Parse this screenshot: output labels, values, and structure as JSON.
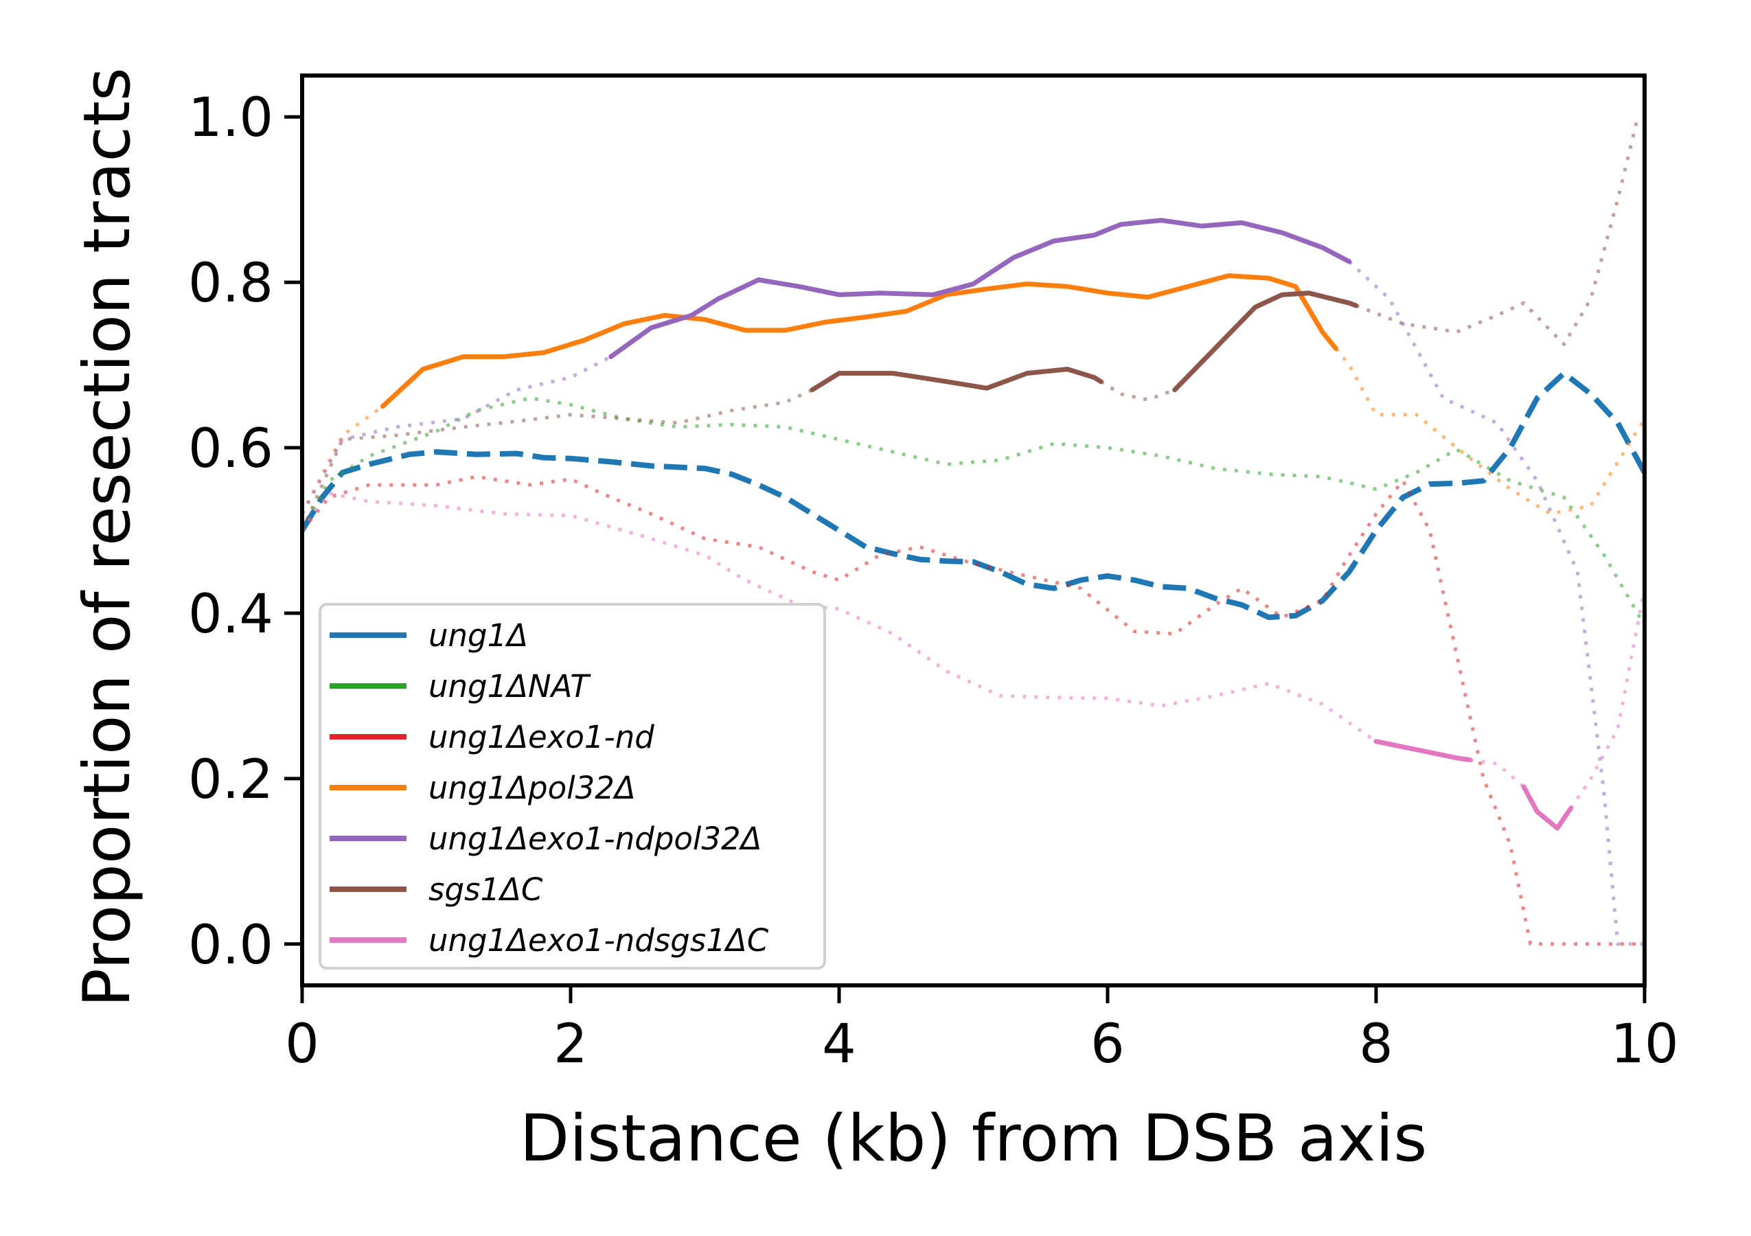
{
  "chart_data": {
    "type": "line",
    "title": "",
    "xlabel": "Distance (kb) from DSB axis",
    "ylabel": "Proportion of resection tracts",
    "xlim": [
      0,
      10
    ],
    "ylim": [
      -0.05,
      1.05
    ],
    "x_ticks": [
      "0",
      "2",
      "4",
      "6",
      "8",
      "10"
    ],
    "y_ticks": [
      "0.0",
      "0.2",
      "0.4",
      "0.6",
      "0.8",
      "1.0"
    ],
    "grid": false,
    "legend_position": "bottom-left",
    "series": [
      {
        "name": "ung1Δ",
        "color": "#1f77b4",
        "style": "dashed",
        "points": [
          [
            0,
            0.5
          ],
          [
            0.15,
            0.54
          ],
          [
            0.3,
            0.57
          ],
          [
            0.5,
            0.58
          ],
          [
            0.8,
            0.592
          ],
          [
            1.0,
            0.595
          ],
          [
            1.3,
            0.592
          ],
          [
            1.6,
            0.593
          ],
          [
            1.8,
            0.588
          ],
          [
            2.0,
            0.587
          ],
          [
            2.3,
            0.583
          ],
          [
            2.6,
            0.578
          ],
          [
            3.0,
            0.575
          ],
          [
            3.2,
            0.568
          ],
          [
            3.4,
            0.555
          ],
          [
            3.6,
            0.54
          ],
          [
            3.8,
            0.52
          ],
          [
            4.0,
            0.5
          ],
          [
            4.2,
            0.48
          ],
          [
            4.4,
            0.472
          ],
          [
            4.6,
            0.465
          ],
          [
            4.8,
            0.463
          ],
          [
            5.0,
            0.462
          ],
          [
            5.2,
            0.45
          ],
          [
            5.4,
            0.435
          ],
          [
            5.6,
            0.43
          ],
          [
            5.8,
            0.44
          ],
          [
            6.0,
            0.445
          ],
          [
            6.2,
            0.44
          ],
          [
            6.4,
            0.432
          ],
          [
            6.6,
            0.43
          ],
          [
            6.8,
            0.418
          ],
          [
            7.0,
            0.41
          ],
          [
            7.2,
            0.395
          ],
          [
            7.4,
            0.397
          ],
          [
            7.6,
            0.415
          ],
          [
            7.8,
            0.45
          ],
          [
            8.0,
            0.5
          ],
          [
            8.2,
            0.54
          ],
          [
            8.4,
            0.556
          ],
          [
            8.6,
            0.557
          ],
          [
            8.8,
            0.56
          ],
          [
            9.0,
            0.6
          ],
          [
            9.2,
            0.66
          ],
          [
            9.4,
            0.69
          ],
          [
            9.6,
            0.665
          ],
          [
            9.8,
            0.63
          ],
          [
            10.0,
            0.57
          ]
        ],
        "dotted_segments": []
      },
      {
        "name": "ung1ΔNAT",
        "color": "#2ca02c",
        "style": "solid",
        "points": [
          [
            0,
            0.5
          ],
          [
            0.2,
            0.56
          ],
          [
            0.5,
            0.59
          ],
          [
            1.0,
            0.62
          ],
          [
            1.3,
            0.645
          ],
          [
            1.7,
            0.66
          ],
          [
            2.0,
            0.652
          ],
          [
            2.4,
            0.635
          ],
          [
            2.8,
            0.625
          ],
          [
            3.2,
            0.628
          ],
          [
            3.6,
            0.625
          ],
          [
            4.0,
            0.61
          ],
          [
            4.4,
            0.595
          ],
          [
            4.8,
            0.58
          ],
          [
            5.2,
            0.585
          ],
          [
            5.6,
            0.605
          ],
          [
            6.0,
            0.6
          ],
          [
            6.4,
            0.59
          ],
          [
            6.8,
            0.575
          ],
          [
            7.2,
            0.568
          ],
          [
            7.6,
            0.565
          ],
          [
            8.0,
            0.55
          ],
          [
            8.3,
            0.57
          ],
          [
            8.6,
            0.598
          ],
          [
            9.0,
            0.56
          ],
          [
            9.4,
            0.54
          ],
          [
            9.7,
            0.47
          ],
          [
            10.0,
            0.385
          ]
        ],
        "dotted_segments": [
          [
            0,
            10
          ]
        ]
      },
      {
        "name": "ung1Δexo1-nd",
        "color": "#d62728",
        "style": "solid",
        "points": [
          [
            0,
            0.5
          ],
          [
            0.2,
            0.54
          ],
          [
            0.5,
            0.555
          ],
          [
            1.0,
            0.555
          ],
          [
            1.3,
            0.565
          ],
          [
            1.7,
            0.555
          ],
          [
            2.0,
            0.562
          ],
          [
            2.3,
            0.54
          ],
          [
            2.6,
            0.52
          ],
          [
            3.0,
            0.49
          ],
          [
            3.4,
            0.48
          ],
          [
            3.8,
            0.45
          ],
          [
            4.0,
            0.44
          ],
          [
            4.3,
            0.47
          ],
          [
            4.6,
            0.48
          ],
          [
            5.0,
            0.46
          ],
          [
            5.4,
            0.445
          ],
          [
            5.8,
            0.43
          ],
          [
            6.2,
            0.378
          ],
          [
            6.5,
            0.375
          ],
          [
            6.8,
            0.41
          ],
          [
            7.0,
            0.43
          ],
          [
            7.3,
            0.395
          ],
          [
            7.6,
            0.415
          ],
          [
            7.8,
            0.47
          ],
          [
            8.0,
            0.52
          ],
          [
            8.2,
            0.56
          ],
          [
            8.4,
            0.5
          ],
          [
            8.6,
            0.35
          ],
          [
            8.8,
            0.2
          ],
          [
            9.0,
            0.12
          ],
          [
            9.15,
            0.0
          ],
          [
            9.5,
            0.0
          ],
          [
            10.0,
            0.0
          ]
        ],
        "dotted_segments": [
          [
            0,
            10
          ]
        ]
      },
      {
        "name": "ung1Δpol32Δ",
        "color": "#ff7f0e",
        "style": "solid",
        "points": [
          [
            0,
            0.52
          ],
          [
            0.3,
            0.615
          ],
          [
            0.6,
            0.65
          ],
          [
            0.9,
            0.695
          ],
          [
            1.2,
            0.71
          ],
          [
            1.5,
            0.71
          ],
          [
            1.8,
            0.715
          ],
          [
            2.1,
            0.73
          ],
          [
            2.4,
            0.75
          ],
          [
            2.7,
            0.76
          ],
          [
            3.0,
            0.755
          ],
          [
            3.3,
            0.742
          ],
          [
            3.6,
            0.742
          ],
          [
            3.9,
            0.752
          ],
          [
            4.2,
            0.758
          ],
          [
            4.5,
            0.765
          ],
          [
            4.8,
            0.785
          ],
          [
            5.1,
            0.792
          ],
          [
            5.4,
            0.798
          ],
          [
            5.7,
            0.795
          ],
          [
            6.0,
            0.787
          ],
          [
            6.3,
            0.782
          ],
          [
            6.6,
            0.795
          ],
          [
            6.9,
            0.808
          ],
          [
            7.2,
            0.805
          ],
          [
            7.4,
            0.795
          ],
          [
            7.6,
            0.74
          ],
          [
            7.8,
            0.7
          ],
          [
            8.0,
            0.64
          ],
          [
            8.3,
            0.64
          ],
          [
            8.6,
            0.6
          ],
          [
            9.0,
            0.55
          ],
          [
            9.3,
            0.52
          ],
          [
            9.6,
            0.53
          ],
          [
            10.0,
            0.635
          ]
        ],
        "dotted_segments": [
          [
            0,
            0.6
          ],
          [
            7.7,
            10
          ]
        ]
      },
      {
        "name": "ung1Δexo1-ndpol32Δ",
        "color": "#9467bd",
        "style": "solid",
        "points": [
          [
            0,
            0.52
          ],
          [
            0.3,
            0.61
          ],
          [
            0.7,
            0.625
          ],
          [
            1.2,
            0.635
          ],
          [
            1.6,
            0.67
          ],
          [
            2.0,
            0.685
          ],
          [
            2.3,
            0.71
          ],
          [
            2.6,
            0.745
          ],
          [
            2.9,
            0.76
          ],
          [
            3.1,
            0.78
          ],
          [
            3.4,
            0.803
          ],
          [
            3.7,
            0.795
          ],
          [
            4.0,
            0.785
          ],
          [
            4.3,
            0.787
          ],
          [
            4.7,
            0.785
          ],
          [
            5.0,
            0.798
          ],
          [
            5.3,
            0.83
          ],
          [
            5.6,
            0.85
          ],
          [
            5.9,
            0.857
          ],
          [
            6.1,
            0.87
          ],
          [
            6.4,
            0.875
          ],
          [
            6.7,
            0.868
          ],
          [
            7.0,
            0.872
          ],
          [
            7.3,
            0.86
          ],
          [
            7.6,
            0.842
          ],
          [
            7.8,
            0.825
          ],
          [
            8.1,
            0.78
          ],
          [
            8.5,
            0.66
          ],
          [
            8.9,
            0.63
          ],
          [
            9.2,
            0.56
          ],
          [
            9.5,
            0.45
          ],
          [
            9.7,
            0.18
          ],
          [
            9.8,
            0.0
          ],
          [
            10.0,
            0.0
          ]
        ],
        "dotted_segments": [
          [
            0,
            2.3
          ],
          [
            7.8,
            10
          ]
        ]
      },
      {
        "name": "sgs1ΔC",
        "color": "#8c564b",
        "style": "solid",
        "points": [
          [
            0,
            0.5
          ],
          [
            0.3,
            0.61
          ],
          [
            0.7,
            0.615
          ],
          [
            1.2,
            0.625
          ],
          [
            1.6,
            0.632
          ],
          [
            2.0,
            0.64
          ],
          [
            2.4,
            0.635
          ],
          [
            2.8,
            0.63
          ],
          [
            3.2,
            0.645
          ],
          [
            3.6,
            0.655
          ],
          [
            3.8,
            0.67
          ],
          [
            4.0,
            0.69
          ],
          [
            4.4,
            0.69
          ],
          [
            4.8,
            0.68
          ],
          [
            5.1,
            0.672
          ],
          [
            5.4,
            0.69
          ],
          [
            5.7,
            0.695
          ],
          [
            5.9,
            0.685
          ],
          [
            6.1,
            0.665
          ],
          [
            6.3,
            0.658
          ],
          [
            6.5,
            0.67
          ],
          [
            6.8,
            0.72
          ],
          [
            7.1,
            0.77
          ],
          [
            7.3,
            0.785
          ],
          [
            7.5,
            0.787
          ],
          [
            7.8,
            0.775
          ],
          [
            8.2,
            0.75
          ],
          [
            8.6,
            0.74
          ],
          [
            8.9,
            0.76
          ],
          [
            9.1,
            0.775
          ],
          [
            9.4,
            0.725
          ],
          [
            9.6,
            0.78
          ],
          [
            9.8,
            0.9
          ],
          [
            9.95,
            1.0
          ]
        ],
        "dotted_segments": [
          [
            0,
            3.8
          ],
          [
            5.95,
            6.5
          ],
          [
            7.85,
            10
          ]
        ]
      },
      {
        "name": "ung1Δexo1-ndsgs1ΔC",
        "color": "#e377c2",
        "style": "solid",
        "points": [
          [
            0,
            0.5
          ],
          [
            0.2,
            0.545
          ],
          [
            0.5,
            0.535
          ],
          [
            1.0,
            0.53
          ],
          [
            1.5,
            0.52
          ],
          [
            2.0,
            0.518
          ],
          [
            2.5,
            0.495
          ],
          [
            3.0,
            0.47
          ],
          [
            3.3,
            0.44
          ],
          [
            3.7,
            0.41
          ],
          [
            4.0,
            0.405
          ],
          [
            4.4,
            0.375
          ],
          [
            4.8,
            0.33
          ],
          [
            5.2,
            0.3
          ],
          [
            5.6,
            0.298
          ],
          [
            6.0,
            0.297
          ],
          [
            6.4,
            0.288
          ],
          [
            6.8,
            0.3
          ],
          [
            7.2,
            0.315
          ],
          [
            7.6,
            0.29
          ],
          [
            8.0,
            0.245
          ],
          [
            8.3,
            0.235
          ],
          [
            8.6,
            0.225
          ],
          [
            8.9,
            0.218
          ],
          [
            9.1,
            0.19
          ],
          [
            9.2,
            0.16
          ],
          [
            9.35,
            0.14
          ],
          [
            9.6,
            0.2
          ],
          [
            9.8,
            0.26
          ],
          [
            10.0,
            0.43
          ]
        ],
        "dotted_segments": [
          [
            0,
            8.0
          ],
          [
            8.7,
            9.1
          ],
          [
            9.45,
            10
          ]
        ]
      }
    ]
  }
}
